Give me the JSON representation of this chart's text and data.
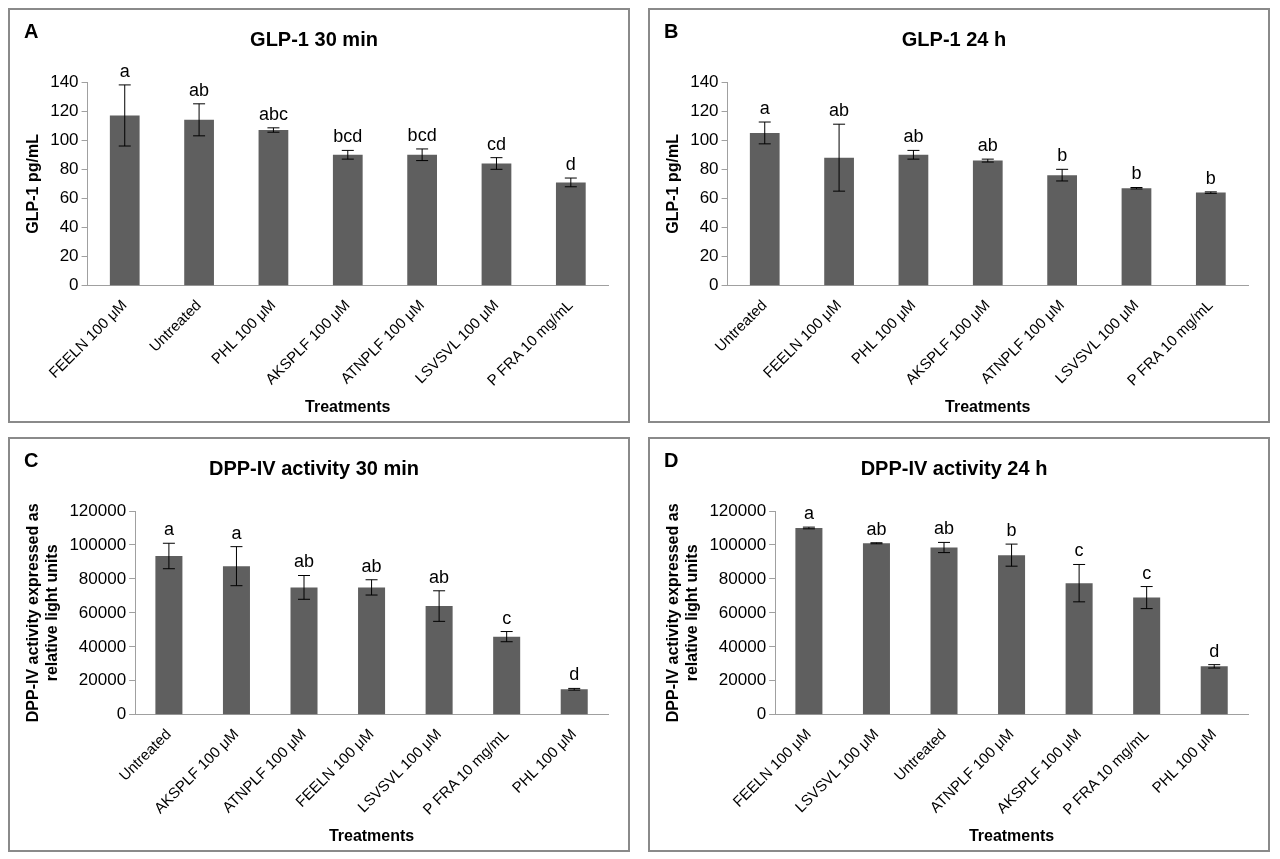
{
  "chart_data": [
    {
      "type": "bar",
      "title": "GLP-1 30 min",
      "xlabel": "Treatments",
      "ylabel": "GLP-1 pg/mL",
      "categories": [
        "FEELN 100 μM",
        "Untreated",
        "PHL 100 μM",
        "AKSPLF 100 μM",
        "ATNPLF 100 μM",
        "LSVSVL 100 μM",
        "P FRA 10 mg/mL"
      ],
      "values": [
        117,
        114,
        107,
        90,
        90,
        84,
        71
      ],
      "errors": [
        21,
        11,
        1.5,
        3,
        4,
        4,
        3
      ],
      "color": "#5f5f5f",
      "ylim": [
        0,
        140
      ],
      "yticks": [
        0,
        20,
        40,
        60,
        80,
        100,
        120,
        140
      ],
      "grid": false,
      "annotations": [
        "A",
        {
          "text": "a",
          "x": "FEELN 100 μM",
          "y": 138
        },
        {
          "text": "ab",
          "x": "Untreated",
          "y": 125
        },
        {
          "text": "abc",
          "x": "PHL 100 μM",
          "y": 108.5
        },
        {
          "text": "bcd",
          "x": "AKSPLF 100 μM",
          "y": 93
        },
        {
          "text": "bcd",
          "x": "ATNPLF 100 μM",
          "y": 94
        },
        {
          "text": "cd",
          "x": "LSVSVL 100 μM",
          "y": 88
        },
        {
          "text": "d",
          "x": "P FRA 10 mg/mL",
          "y": 74
        }
      ]
    },
    {
      "type": "bar",
      "title": "GLP-1 24 h",
      "xlabel": "Treatments",
      "ylabel": "GLP-1 pg/mL",
      "categories": [
        "Untreated",
        "FEELN 100 μM",
        "PHL 100 μM",
        "AKSPLF 100 μM",
        "ATNPLF 100 μM",
        "LSVSVL 100 μM",
        "P FRA 10 mg/mL"
      ],
      "values": [
        105,
        88,
        90,
        86,
        76,
        67,
        64
      ],
      "errors": [
        7.5,
        23,
        3,
        1,
        4,
        0.5,
        0.5
      ],
      "color": "#5f5f5f",
      "ylim": [
        0,
        140
      ],
      "yticks": [
        0,
        20,
        40,
        60,
        80,
        100,
        120,
        140
      ],
      "grid": false,
      "annotations": [
        "B",
        {
          "text": "a",
          "x": "Untreated",
          "y": 112.5
        },
        {
          "text": "ab",
          "x": "FEELN 100 μM",
          "y": 111
        },
        {
          "text": "ab",
          "x": "PHL 100 μM",
          "y": 93
        },
        {
          "text": "ab",
          "x": "AKSPLF 100 μM",
          "y": 87
        },
        {
          "text": "b",
          "x": "ATNPLF 100 μM",
          "y": 80
        },
        {
          "text": "b",
          "x": "LSVSVL 100 μM",
          "y": 67.5
        },
        {
          "text": "b",
          "x": "P FRA 10 mg/mL",
          "y": 64.5
        }
      ]
    },
    {
      "type": "bar",
      "title": "DPP-IV activity 30 min",
      "xlabel": "Treatments",
      "ylabel": "DPP-IV activity  expressed as relative light units",
      "categories": [
        "Untreated",
        "AKSPLF 100 μM",
        "ATNPLF 100 μM",
        "FEELN 100 μM",
        "LSVSVL 100 μM",
        "P FRA 10 mg/mL",
        "PHL 100 μM"
      ],
      "values": [
        93500,
        87500,
        75000,
        75000,
        64000,
        46000,
        15000
      ],
      "errors": [
        7500,
        11500,
        7000,
        4500,
        9000,
        3000,
        500
      ],
      "color": "#5f5f5f",
      "ylim": [
        0,
        120000
      ],
      "yticks": [
        0,
        20000,
        40000,
        60000,
        80000,
        100000,
        120000
      ],
      "grid": false,
      "annotations": [
        "C",
        {
          "text": "a",
          "x": "Untreated",
          "y": 101000
        },
        {
          "text": "a",
          "x": "AKSPLF 100 μM",
          "y": 99000
        },
        {
          "text": "ab",
          "x": "ATNPLF 100 μM",
          "y": 82000
        },
        {
          "text": "ab",
          "x": "FEELN 100 μM",
          "y": 79500
        },
        {
          "text": "ab",
          "x": "LSVSVL 100 μM",
          "y": 73000
        },
        {
          "text": "c",
          "x": "P FRA 10 mg/mL",
          "y": 49000
        },
        {
          "text": "d",
          "x": "PHL 100 μM",
          "y": 15500
        }
      ]
    },
    {
      "type": "bar",
      "title": "DPP-IV activity 24 h",
      "xlabel": "Treatments",
      "ylabel": "DPP-IV activity  expressed as relative light units",
      "categories": [
        "FEELN 100 μM",
        "LSVSVL 100 μM",
        "Untreated",
        "ATNPLF 100 μM",
        "AKSPLF 100 μM",
        "P FRA 10 mg/mL",
        "PHL 100 μM"
      ],
      "values": [
        110000,
        101000,
        98500,
        94000,
        77500,
        69000,
        28500
      ],
      "errors": [
        500,
        300,
        3000,
        6500,
        11000,
        6500,
        1000
      ],
      "color": "#5f5f5f",
      "ylim": [
        0,
        120000
      ],
      "yticks": [
        0,
        20000,
        40000,
        60000,
        80000,
        100000,
        120000
      ],
      "grid": false,
      "annotations": [
        "D",
        {
          "text": "a",
          "x": "FEELN 100 μM",
          "y": 110500
        },
        {
          "text": "ab",
          "x": "LSVSVL 100 μM",
          "y": 101300
        },
        {
          "text": "ab",
          "x": "Untreated",
          "y": 101500
        },
        {
          "text": "b",
          "x": "ATNPLF 100 μM",
          "y": 100500
        },
        {
          "text": "c",
          "x": "AKSPLF 100 μM",
          "y": 88500
        },
        {
          "text": "c",
          "x": "P FRA 10 mg/mL",
          "y": 75500
        },
        {
          "text": "d",
          "x": "PHL 100 μM",
          "y": 29500
        }
      ]
    }
  ]
}
